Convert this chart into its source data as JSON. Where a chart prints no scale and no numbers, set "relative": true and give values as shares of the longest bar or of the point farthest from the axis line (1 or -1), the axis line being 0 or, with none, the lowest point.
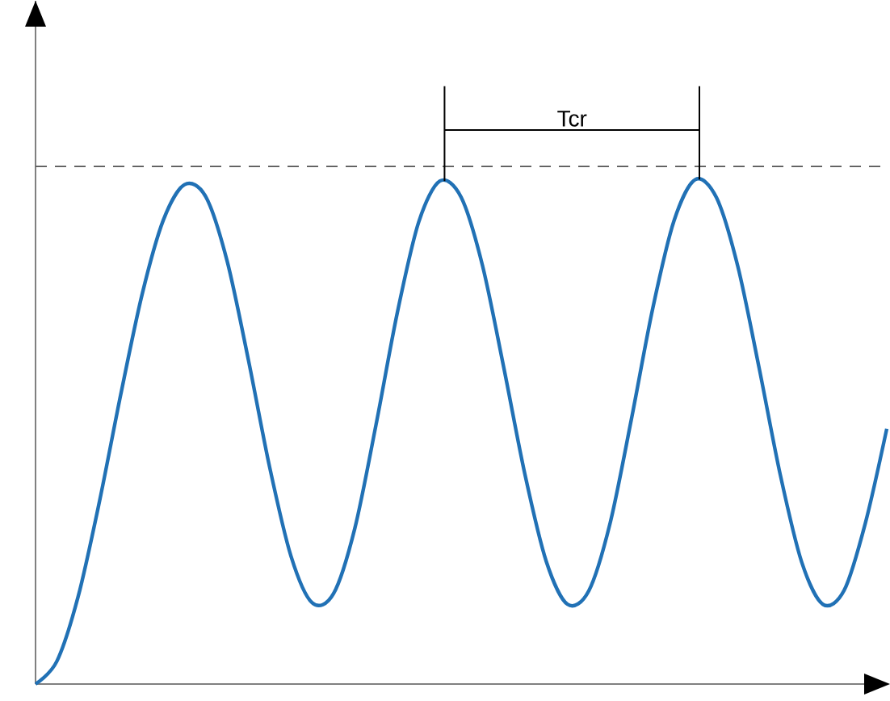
{
  "chart_data": {
    "type": "line",
    "relative": true,
    "categories": [
      null,
      null,
      null,
      null,
      null,
      null,
      null,
      null,
      null,
      null,
      null,
      null,
      null,
      null,
      null,
      null,
      null,
      null,
      null,
      null,
      null,
      null,
      null,
      null,
      null,
      null,
      null,
      null,
      null,
      null,
      null,
      null,
      null,
      null,
      null,
      null,
      null,
      null,
      null,
      null,
      null
    ],
    "series": [
      {
        "color": "#2171b5",
        "line_style": "solid",
        "values": [
          0,
          0.045,
          0.173,
          0.361,
          0.573,
          0.771,
          0.919,
          0.99,
          0.966,
          0.839,
          0.643,
          0.43,
          0.254,
          0.161,
          0.179,
          0.308,
          0.514,
          0.736,
          0.915,
          0.997,
          0.965,
          0.83,
          0.628,
          0.415,
          0.243,
          0.158,
          0.185,
          0.319,
          0.525,
          0.744,
          0.918,
          1,
          0.964,
          0.828,
          0.627,
          0.414,
          0.242,
          0.158,
          0.186,
          0.32,
          0.506
        ]
      }
    ],
    "ref_lines": [
      {
        "axis": "y",
        "value": 1.026,
        "color": "#555555",
        "line_style": "dashed"
      }
    ],
    "annotations": [
      "Tcr"
    ]
  }
}
